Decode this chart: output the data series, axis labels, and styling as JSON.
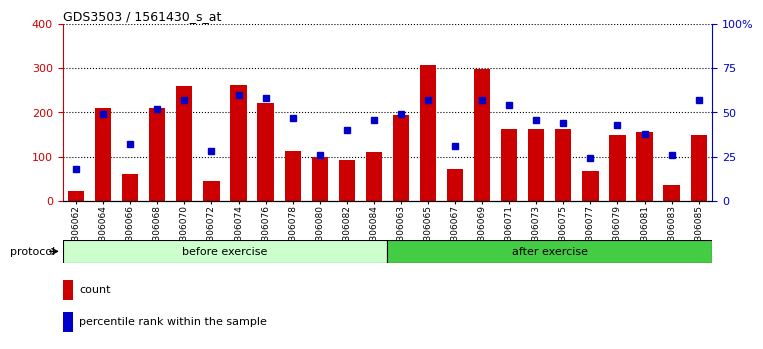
{
  "title": "GDS3503 / 1561430_s_at",
  "categories": [
    "GSM306062",
    "GSM306064",
    "GSM306066",
    "GSM306068",
    "GSM306070",
    "GSM306072",
    "GSM306074",
    "GSM306076",
    "GSM306078",
    "GSM306080",
    "GSM306082",
    "GSM306084",
    "GSM306063",
    "GSM306065",
    "GSM306067",
    "GSM306069",
    "GSM306071",
    "GSM306073",
    "GSM306075",
    "GSM306077",
    "GSM306079",
    "GSM306081",
    "GSM306083",
    "GSM306085"
  ],
  "counts": [
    22,
    210,
    62,
    210,
    260,
    46,
    262,
    222,
    112,
    100,
    92,
    110,
    195,
    308,
    72,
    298,
    162,
    162,
    162,
    68,
    150,
    156,
    35,
    150
  ],
  "percentiles": [
    18,
    49,
    32,
    52,
    57,
    28,
    60,
    58,
    47,
    26,
    40,
    46,
    49,
    57,
    31,
    57,
    54,
    46,
    44,
    24,
    43,
    38,
    26,
    57
  ],
  "before_count": 12,
  "after_count": 12,
  "bar_color": "#cc0000",
  "dot_color": "#0000cc",
  "ylim_left": [
    0,
    400
  ],
  "ylim_right": [
    0,
    100
  ],
  "yticks_left": [
    0,
    100,
    200,
    300,
    400
  ],
  "yticks_right": [
    0,
    25,
    50,
    75,
    100
  ],
  "yticklabels_right": [
    "0",
    "25",
    "50",
    "75",
    "100%"
  ],
  "before_label": "before exercise",
  "after_label": "after exercise",
  "protocol_label": "protocol",
  "legend_count": "count",
  "legend_pct": "percentile rank within the sample",
  "before_color": "#ccffcc",
  "after_color": "#44cc44",
  "tick_label_color_left": "#cc0000",
  "tick_label_color_right": "#0000cc",
  "plot_bg_color": "#ffffff"
}
